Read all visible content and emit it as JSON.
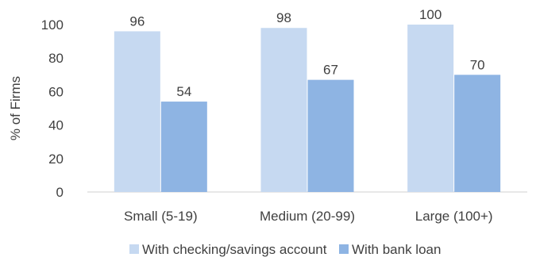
{
  "chart_data": {
    "type": "bar",
    "title": "",
    "xlabel": "",
    "ylabel": "% of Firms",
    "ylim": [
      0,
      100
    ],
    "yticks": [
      0,
      20,
      40,
      60,
      80,
      100
    ],
    "grid": false,
    "legend_position": "bottom",
    "categories": [
      "Small (5-19)",
      "Medium (20-99)",
      "Large (100+)"
    ],
    "series": [
      {
        "name": "With checking/savings account",
        "values": [
          96,
          98,
          100
        ],
        "color": "#c6d9f1"
      },
      {
        "name": "With bank loan",
        "values": [
          54,
          67,
          70
        ],
        "color": "#8eb4e3"
      }
    ]
  }
}
